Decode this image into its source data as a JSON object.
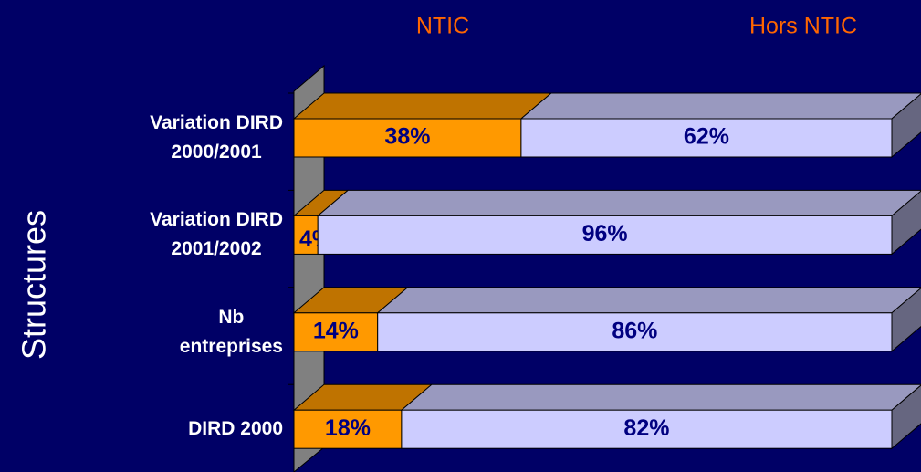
{
  "chart_data": {
    "type": "bar",
    "orientation": "horizontal",
    "stacked": true,
    "y_label": "Structures",
    "categories": [
      "Variation DIRD\n2000/2001",
      "Variation DIRD\n2001/2002",
      "Nb\nentreprises",
      "DIRD 2000"
    ],
    "series": [
      {
        "name": "NTIC",
        "color": "#ff9900",
        "values": [
          38,
          4,
          14,
          18
        ],
        "value_labels": [
          "38%",
          "4%",
          "14%",
          "18%"
        ]
      },
      {
        "name": "Hors NTIC",
        "color": "#ccccff",
        "values": [
          62,
          96,
          86,
          82
        ],
        "value_labels": [
          "62%",
          "96%",
          "86%",
          "82%"
        ]
      }
    ],
    "xlim": [
      0,
      100
    ]
  }
}
